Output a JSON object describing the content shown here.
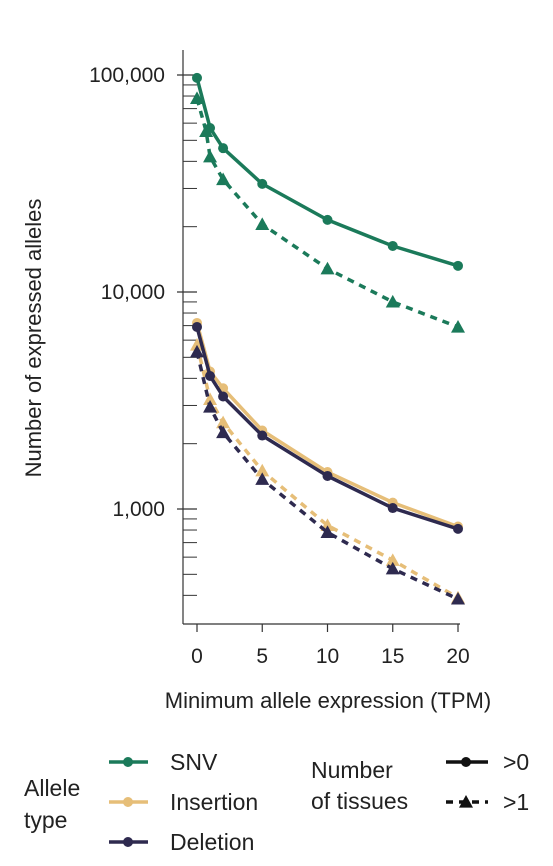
{
  "chart_data": {
    "type": "line",
    "xlabel": "Minimum allele expression (TPM)",
    "ylabel": "Number of expressed alleles",
    "yscale": "log",
    "xlim": [
      0,
      20
    ],
    "ylim": [
      350,
      100000
    ],
    "x_ticks": [
      "0",
      "5",
      "10",
      "15",
      "20"
    ],
    "y_ticks": [
      "1,000",
      "10,000",
      "100,000"
    ],
    "x": [
      0,
      1,
      2,
      5,
      10,
      15,
      20
    ],
    "series": [
      {
        "allele_type": "SNV",
        "tissues": ">0",
        "color": "#1b7a5a",
        "marker": "circle",
        "dashed": false,
        "values": [
          97000,
          57000,
          46000,
          31500,
          21500,
          16300,
          13200
        ]
      },
      {
        "allele_type": "SNV",
        "tissues": ">1",
        "color": "#1b7a5a",
        "marker": "triangle",
        "dashed": true,
        "values": [
          78000,
          55000,
          42000,
          33000,
          20500,
          12800,
          9000,
          6900
        ],
        "x": [
          0,
          0.7,
          1,
          2,
          5,
          10,
          15,
          20
        ]
      },
      {
        "allele_type": "Insertion",
        "tissues": ">0",
        "color": "#e6be78",
        "marker": "circle",
        "dashed": false,
        "values": [
          7200,
          4300,
          3600,
          2300,
          1480,
          1070,
          830
        ]
      },
      {
        "allele_type": "Insertion",
        "tissues": ">1",
        "color": "#e6be78",
        "marker": "triangle",
        "dashed": true,
        "values": [
          5700,
          3200,
          2500,
          1500,
          840,
          580,
          390
        ]
      },
      {
        "allele_type": "Deletion",
        "tissues": ">0",
        "color": "#2e2a4f",
        "marker": "circle",
        "dashed": false,
        "values": [
          6900,
          4100,
          3300,
          2180,
          1420,
          1010,
          810
        ]
      },
      {
        "allele_type": "Deletion",
        "tissues": ">1",
        "color": "#2e2a4f",
        "marker": "triangle",
        "dashed": true,
        "values": [
          5300,
          2950,
          2250,
          1370,
          780,
          530,
          385
        ]
      }
    ],
    "legend": {
      "allele_title": [
        "Allele",
        "type"
      ],
      "allele_entries": [
        {
          "label": "SNV",
          "color": "#1b7a5a"
        },
        {
          "label": "Insertion",
          "color": "#e6be78"
        },
        {
          "label": "Deletion",
          "color": "#2e2a4f"
        }
      ],
      "tissue_title": [
        "Number",
        "of tissues"
      ],
      "tissue_entries": [
        {
          "label": ">0",
          "marker": "circle",
          "dashed": false
        },
        {
          "label": ">1",
          "marker": "triangle",
          "dashed": true
        }
      ],
      "placement": "bottom"
    },
    "grid": false
  }
}
